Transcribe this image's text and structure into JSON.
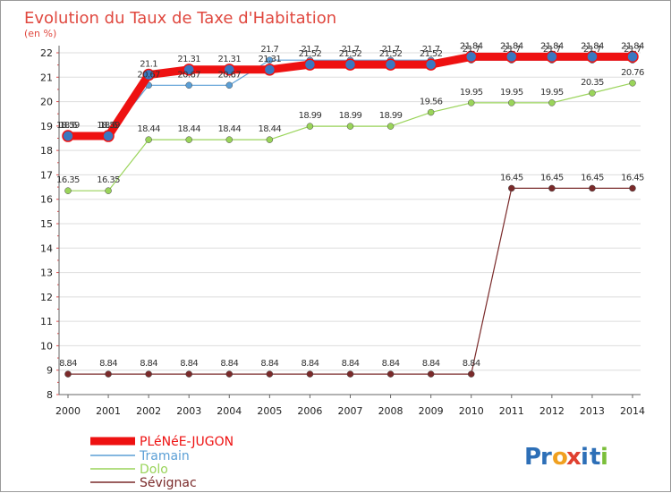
{
  "chart_data": {
    "type": "line",
    "title": "Evolution du Taux de Taxe d'Habitation",
    "subtitle": "(en %)",
    "xlabel": "",
    "ylabel": "",
    "ylim": [
      8,
      22
    ],
    "yticks": [
      8,
      9,
      10,
      11,
      12,
      13,
      14,
      15,
      16,
      17,
      18,
      19,
      20,
      21,
      22
    ],
    "categories": [
      "2000",
      "2001",
      "2002",
      "2003",
      "2004",
      "2005",
      "2006",
      "2007",
      "2008",
      "2009",
      "2010",
      "2011",
      "2012",
      "2013",
      "2014"
    ],
    "grid": "horizontal",
    "legend_position": "bottom-left",
    "series": [
      {
        "name": "PLéNéE-JUGON",
        "color": "#ee1111",
        "values": [
          18.59,
          18.59,
          21.1,
          21.31,
          21.31,
          21.31,
          21.52,
          21.52,
          21.52,
          21.52,
          21.84,
          21.84,
          21.84,
          21.84,
          21.84
        ],
        "labels": [
          "18.59",
          "18.59",
          "21.1",
          "21.31",
          "21.31",
          "21.31",
          "21.52",
          "21.52",
          "21.52",
          "21.52",
          "21.84",
          "21.84",
          "21.84",
          "21.84",
          "21.84"
        ]
      },
      {
        "name": "Tramain",
        "color": "#5b9fd6",
        "values": [
          18.6,
          18.6,
          20.67,
          20.67,
          20.67,
          21.7,
          21.7,
          21.7,
          21.7,
          21.7,
          21.7,
          21.7,
          21.7,
          21.7,
          21.7
        ],
        "labels": [
          "18.6",
          "18.6",
          "20.67",
          "20.67",
          "20.67",
          "21.7",
          "21.7",
          "21.7",
          "21.7",
          "21.7",
          "21.7",
          "21.7",
          "21.7",
          "21.7",
          "21.7"
        ]
      },
      {
        "name": "Dolo",
        "color": "#9ad45a",
        "values": [
          16.35,
          16.35,
          18.44,
          18.44,
          18.44,
          18.44,
          18.99,
          18.99,
          18.99,
          19.56,
          19.95,
          19.95,
          19.95,
          20.35,
          20.76
        ],
        "labels": [
          "16.35",
          "16.35",
          "18.44",
          "18.44",
          "18.44",
          "18.44",
          "18.99",
          "18.99",
          "18.99",
          "19.56",
          "19.95",
          "19.95",
          "19.95",
          "20.35",
          "20.76"
        ]
      },
      {
        "name": "Sévignac",
        "color": "#7a2a2a",
        "values": [
          8.84,
          8.84,
          8.84,
          8.84,
          8.84,
          8.84,
          8.84,
          8.84,
          8.84,
          8.84,
          8.84,
          16.45,
          16.45,
          16.45,
          16.45
        ],
        "labels": [
          "8.84",
          "8.84",
          "8.84",
          "8.84",
          "8.84",
          "8.84",
          "8.84",
          "8.84",
          "8.84",
          "8.84",
          "8.84",
          "16.45",
          "16.45",
          "16.45",
          "16.45"
        ]
      }
    ]
  },
  "brand": {
    "text": "Proxiti",
    "letters": [
      "P",
      "r",
      "o",
      "x",
      "i",
      "t",
      "i"
    ],
    "colors": [
      "#2d6fb7",
      "#2d6fb7",
      "#f0a020",
      "#e04030",
      "#2d6fb7",
      "#2d6fb7",
      "#7bbf3a"
    ]
  }
}
